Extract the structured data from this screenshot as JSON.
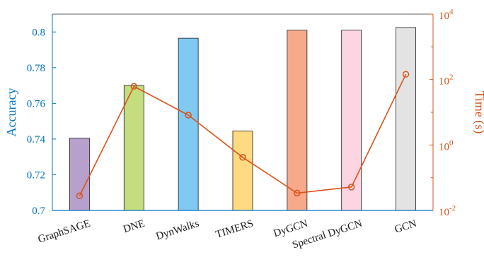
{
  "chart_data": {
    "type": "bar",
    "categories": [
      "GraphSAGE",
      "DNE",
      "DynWalks",
      "TIMERS",
      "DyGCN",
      "Spectral DyGCN",
      "GCN"
    ],
    "series": [
      {
        "name": "Accuracy",
        "type": "bar",
        "axis": "left",
        "values": [
          0.7405,
          0.77,
          0.7965,
          0.7445,
          0.801,
          0.801,
          0.8025
        ],
        "colors": [
          "#b7a0cb",
          "#c3dd7f",
          "#7fc9f2",
          "#fedb81",
          "#f8a98a",
          "#fcd4e2",
          "#e3e3e3"
        ]
      },
      {
        "name": "Time (s)",
        "type": "line",
        "axis": "right",
        "values": [
          0.028,
          62,
          8.2,
          0.42,
          0.034,
          0.052,
          145
        ],
        "color": "#d95319"
      }
    ],
    "ylabel": "Accuracy",
    "ylabel_right": "Time (s)",
    "ylim": [
      0.7,
      0.81
    ],
    "ylim_right": [
      0.01,
      10000
    ],
    "y_scale_right": "log",
    "yticks": [
      "0.7",
      "0.72",
      "0.74",
      "0.76",
      "0.78",
      "0.8"
    ],
    "yticks_right": [
      {
        "base": "10",
        "exp": "-2"
      },
      {
        "base": "10",
        "exp": "0"
      },
      {
        "base": "10",
        "exp": "2"
      },
      {
        "base": "10",
        "exp": "4"
      }
    ],
    "left_axis_color": "#0072bd",
    "right_axis_color": "#d95319",
    "grid": false
  }
}
